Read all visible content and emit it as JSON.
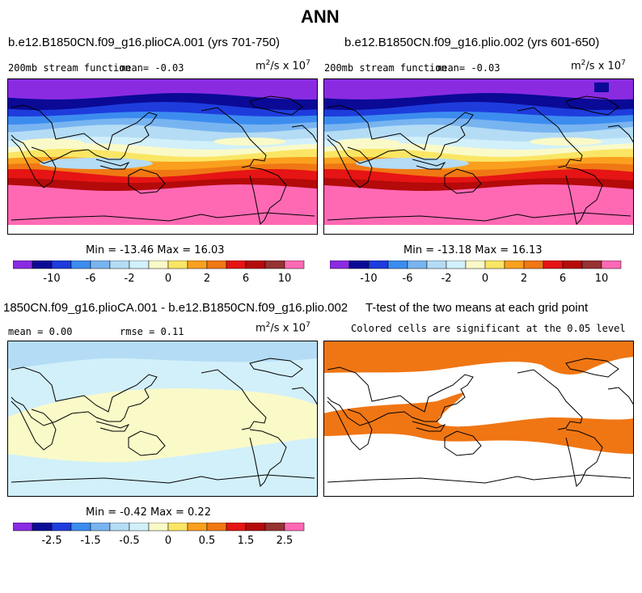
{
  "page": {
    "title": "ANN"
  },
  "panels": {
    "p1": {
      "title": "b.e12.B1850CN.f09_g16.plioCA.001 (yrs 701-750)",
      "left_label": "200mb stream function",
      "mean_label": "mean=  -0.03",
      "units_base": "m",
      "units_mid": "/s x 10",
      "units_exp1": "2",
      "units_exp2": "7",
      "minmax": "Min = -13.46 Max =  16.03"
    },
    "p2": {
      "title": "b.e12.B1850CN.f09_g16.plio.002 (yrs 601-650)",
      "left_label": "200mb stream function",
      "mean_label": "mean=  -0.03",
      "units_base": "m",
      "units_mid": "/s x 10",
      "units_exp1": "2",
      "units_exp2": "7",
      "minmax": "Min = -13.18 Max =  16.13"
    },
    "p3": {
      "title": "1850CN.f09_g16.plioCA.001 - b.e12.B1850CN.f09_g16.plio.002",
      "left_label": "mean =   0.00",
      "rmse_label": "rmse =   0.11",
      "units_base": "m",
      "units_mid": "/s x 10",
      "units_exp1": "2",
      "units_exp2": "7",
      "minmax": "Min = -0.42 Max =   0.22"
    },
    "p4": {
      "title": "T-test of the two means at each grid point",
      "subtitle": "Colored cells are significant at the 0.05 level"
    }
  },
  "colors": {
    "significant": "#f07614",
    "abs_palette": [
      "#8a2be2",
      "#0a0a96",
      "#1e3cdc",
      "#3c8cf0",
      "#78b4f0",
      "#b4dcf5",
      "#d2f0fa",
      "#fafac8",
      "#fae664",
      "#faa01e",
      "#f07814",
      "#e61414",
      "#b40a0a",
      "#963232",
      "#ff69b4"
    ],
    "diff_palette": [
      "#8a2be2",
      "#0a0a96",
      "#1e3cdc",
      "#3c8cf0",
      "#78b4f0",
      "#b4dcf5",
      "#d2f0fa",
      "#fafac8",
      "#fae664",
      "#faa01e",
      "#f07814",
      "#e61414",
      "#b40a0a",
      "#963232",
      "#ff69b4"
    ]
  },
  "chart_data": [
    {
      "type": "heatmap",
      "title": "b.e12.B1850CN.f09_g16.plioCA.001 (yrs 701-750)",
      "field": "200mb stream function",
      "units": "m^2/s x 10^7",
      "mean": -0.03,
      "min": -13.46,
      "max": 16.03,
      "colorbar_ticks": [
        -10,
        -6,
        -2,
        0,
        2,
        6,
        10
      ],
      "zonal_bands_top_to_bottom": [
        "#8a2be2",
        "#0a0a96",
        "#1e3cdc",
        "#3c8cf0",
        "#78b4f0",
        "#b4dcf5",
        "#d2f0fa",
        "#fafac8",
        "#fae664",
        "#faa01e",
        "#f07814",
        "#e61414",
        "#b40a0a",
        "#ff69b4"
      ]
    },
    {
      "type": "heatmap",
      "title": "b.e12.B1850CN.f09_g16.plio.002 (yrs 601-650)",
      "field": "200mb stream function",
      "units": "m^2/s x 10^7",
      "mean": -0.03,
      "min": -13.18,
      "max": 16.13,
      "colorbar_ticks": [
        -10,
        -6,
        -2,
        0,
        2,
        6,
        10
      ]
    },
    {
      "type": "heatmap",
      "title": "1850CN.f09_g16.plioCA.001 - b.e12.B1850CN.f09_g16.plio.002",
      "mean": 0.0,
      "rmse": 0.11,
      "units": "m^2/s x 10^7",
      "min": -0.42,
      "max": 0.22,
      "colorbar_ticks": [
        -2.5,
        -1.5,
        -0.5,
        0,
        0.5,
        1.5,
        2.5
      ]
    },
    {
      "type": "heatmap",
      "title": "T-test of the two means at each grid point",
      "subtitle": "Colored cells are significant at the 0.05 level"
    }
  ],
  "colorbars": {
    "abs_labels": [
      "-10",
      "-6",
      "-2",
      "0",
      "2",
      "6",
      "10"
    ],
    "diff_labels": [
      "-2.5",
      "-1.5",
      "-0.5",
      "0",
      "0.5",
      "1.5",
      "2.5"
    ]
  }
}
